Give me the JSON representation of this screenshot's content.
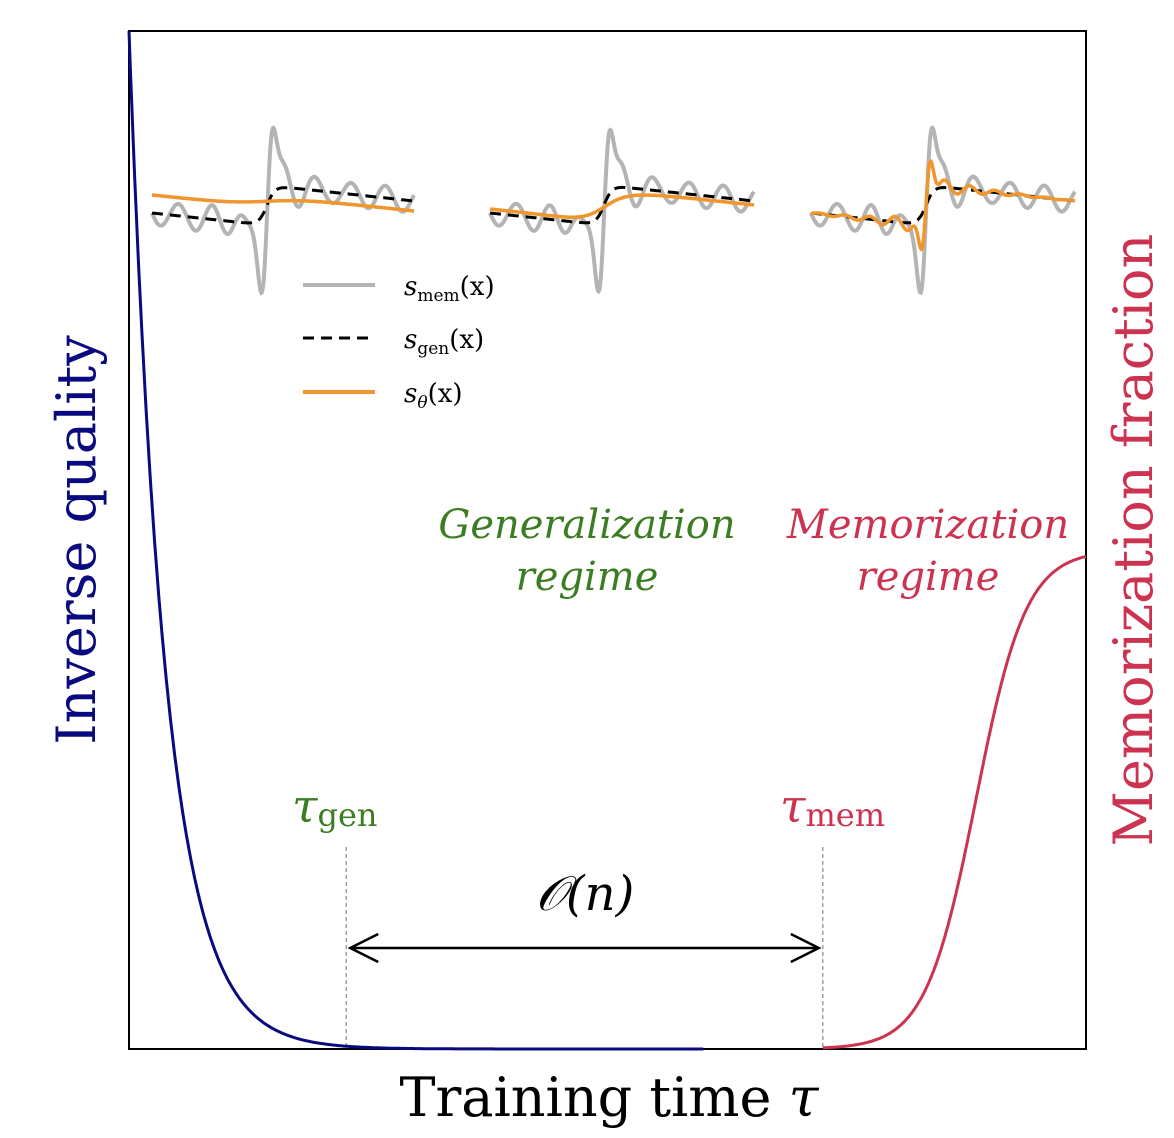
{
  "chart_data": {
    "type": "line",
    "xlabel": "Training time",
    "xlabel_symbol": "τ",
    "ylabel_left": "Inverse quality",
    "ylabel_right": "Memorization fraction",
    "xlim": [
      0,
      1
    ],
    "ylim": [
      0,
      1
    ],
    "grid": false,
    "legend_placement": "upper-left-inset",
    "legend": [
      {
        "symbol": "s",
        "subscript": "mem",
        "arg": "(x)"
      },
      {
        "symbol": "s",
        "subscript": "gen",
        "arg": "(x)"
      },
      {
        "symbol": "s",
        "subscript": "θ",
        "arg": "(x)"
      }
    ],
    "annotations": {
      "gen_regime_line1": "Generalization",
      "gen_regime_line2": "regime",
      "mem_regime_line1": "Memorization",
      "mem_regime_line2": "regime",
      "tau_gen_symbol": "τ",
      "tau_gen_sub": "gen",
      "tau_mem_symbol": "τ",
      "tau_mem_sub": "mem",
      "gap_label": "𝒪(n)"
    },
    "markers": {
      "tau_gen": 0.227,
      "tau_mem": 0.725
    },
    "inverse_quality_decay_rate": 26,
    "memorization_fraction": {
      "midpoint": 0.885,
      "steepness": 38,
      "final_level": 0.49
    },
    "series": [
      {
        "name": "Inverse quality",
        "values_note": "",
        "color": "#0a0a80"
      },
      {
        "name": "Memorization fraction",
        "values_note": "",
        "color": "#cc3350"
      }
    ],
    "colors": {
      "inverse_quality": "#0a0a80",
      "memorization": "#cc3350",
      "generalization": "#3b7d23",
      "s_mem": "#b4b4b4",
      "s_gen": "#000000",
      "s_theta": "#f0962e"
    }
  }
}
